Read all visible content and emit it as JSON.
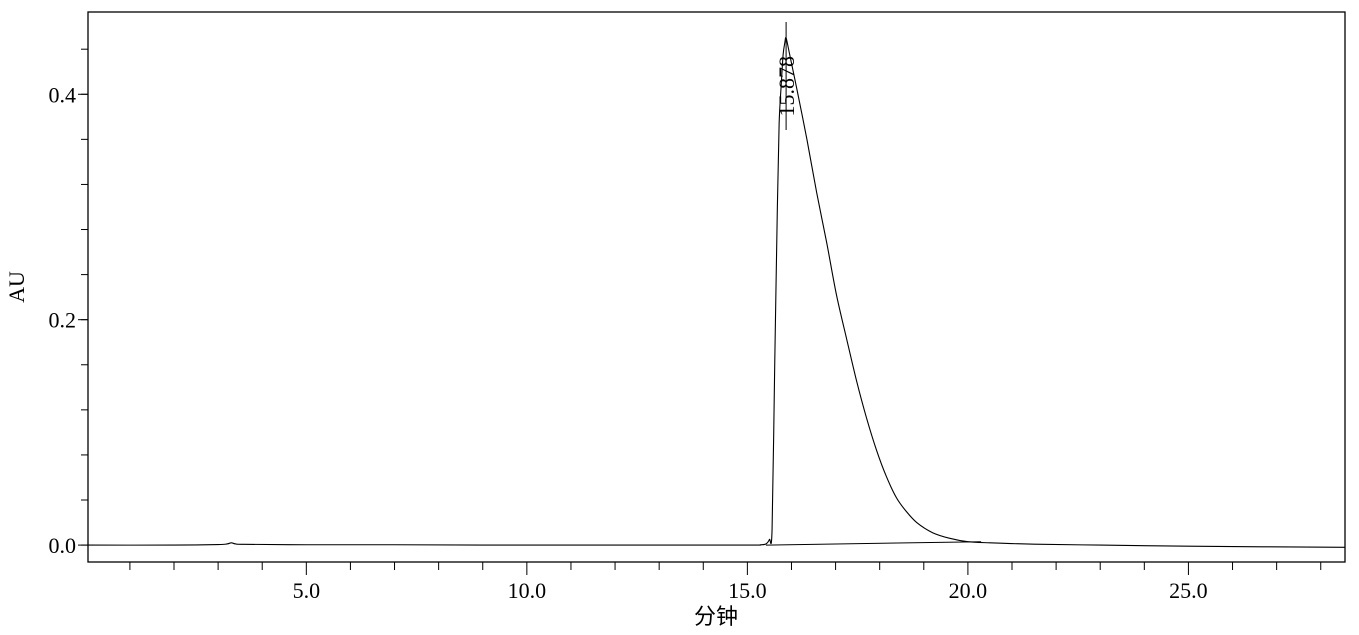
{
  "chart_data": {
    "type": "line",
    "title": "",
    "xlabel": "分钟",
    "ylabel": "AU",
    "xlim": [
      0.05,
      28.55
    ],
    "ylim": [
      -0.015,
      0.473
    ],
    "grid": false,
    "x_ticks": [
      {
        "value": 5,
        "label": "5.0"
      },
      {
        "value": 10,
        "label": "10.0"
      },
      {
        "value": 15,
        "label": "15.0"
      },
      {
        "value": 20,
        "label": "20.0"
      },
      {
        "value": 25,
        "label": "25.0"
      }
    ],
    "x_minor_step": 1,
    "y_ticks": [
      {
        "value": 0.0,
        "label": "0.0"
      },
      {
        "value": 0.2,
        "label": "0.2"
      },
      {
        "value": 0.4,
        "label": "0.4"
      }
    ],
    "y_minor_step": 0.04,
    "series": [
      {
        "x": [
          0.05,
          2.0,
          3.0,
          3.2,
          3.3,
          3.4,
          3.6,
          5.0,
          7.0,
          9.0,
          12.0,
          15.0,
          15.3,
          15.42,
          15.5,
          15.56,
          15.62,
          15.68,
          15.72,
          15.77,
          15.81,
          15.85,
          15.878,
          15.95,
          16.12,
          16.35,
          16.57,
          16.8,
          17.02,
          17.25,
          17.48,
          17.7,
          17.93,
          18.15,
          18.38,
          18.6,
          18.84,
          19.2,
          19.59,
          20.0,
          20.5,
          21.5,
          23.0,
          25.0,
          28.55
        ],
        "y": [
          0.0,
          0.0,
          0.0005,
          0.001,
          0.002,
          0.001,
          0.0007,
          0.0003,
          0.0003,
          0.0,
          0.0,
          0.0,
          0.0003,
          0.001,
          0.005,
          0.014,
          0.16,
          0.3,
          0.374,
          0.41,
          0.435,
          0.446,
          0.45,
          0.437,
          0.405,
          0.36,
          0.313,
          0.268,
          0.222,
          0.183,
          0.145,
          0.113,
          0.084,
          0.061,
          0.042,
          0.03,
          0.02,
          0.011,
          0.006,
          0.003,
          0.002,
          0.0008,
          0.0,
          -0.001,
          -0.002
        ]
      }
    ],
    "integration_baseline": {
      "x": [
        15.42,
        20.3
      ],
      "y": [
        0.0,
        0.003
      ]
    },
    "annotations": [
      {
        "text": "15.878",
        "x": 15.878,
        "y": 0.45
      }
    ]
  }
}
